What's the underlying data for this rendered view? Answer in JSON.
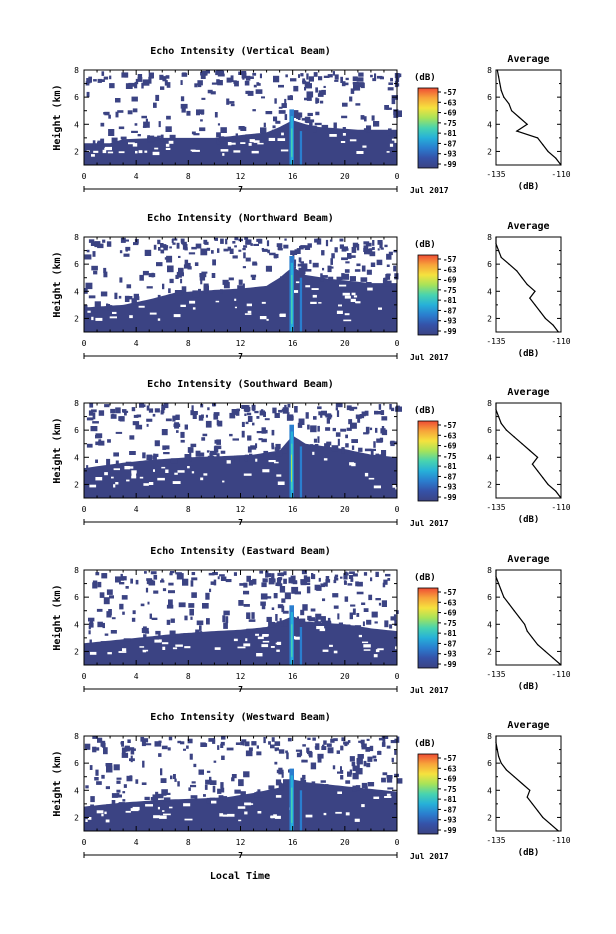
{
  "common": {
    "y_label": "Height (km)",
    "unit_label": "(dB)",
    "colorbar_ticks": [
      "-57",
      "-63",
      "-69",
      "-75",
      "-81",
      "-87",
      "-93",
      "-99"
    ],
    "time_ticks": [
      "0",
      "4",
      "8",
      "12",
      "16",
      "20",
      "0"
    ],
    "period_day": "7",
    "period_month_year": "Jul 2017",
    "x_label": "Local Time",
    "avg_title": "Average",
    "avg_x_ticks": [
      "-135",
      "-110"
    ],
    "avg_x_label": "(dB)"
  },
  "colors": {
    "background": "#3b4383",
    "colorbar": [
      "#3b4383",
      "#3552a8",
      "#2a7ecf",
      "#26b0d9",
      "#47d3b0",
      "#a6e35a",
      "#f5e23e",
      "#f7a53a",
      "#ef4c34"
    ]
  },
  "chart_data": [
    {
      "type": "heatmap",
      "title": "Echo Intensity (Vertical Beam)",
      "x_range": [
        0,
        24
      ],
      "y_range": [
        1,
        8
      ],
      "color_range_db": [
        -99,
        -57
      ],
      "average_profile": {
        "title": "Average",
        "x_range": [
          -135,
          -110
        ],
        "y_range": [
          1,
          8
        ],
        "height_km": [
          1.0,
          1.5,
          2.0,
          2.5,
          3.0,
          3.5,
          4.0,
          4.5,
          5.0,
          5.5,
          6.0,
          6.5,
          7.0,
          7.5,
          8.0
        ],
        "value_db": [
          -110,
          -112,
          -115,
          -117,
          -119,
          -127,
          -123,
          -126,
          -129,
          -130,
          -132,
          -133,
          -133.5,
          -134,
          -134.5
        ]
      }
    },
    {
      "type": "heatmap",
      "title": "Echo Intensity (Northward Beam)",
      "x_range": [
        0,
        24
      ],
      "y_range": [
        1,
        8
      ],
      "color_range_db": [
        -99,
        -57
      ],
      "average_profile": {
        "title": "Average",
        "x_range": [
          -135,
          -110
        ],
        "y_range": [
          1,
          8
        ],
        "height_km": [
          1.0,
          1.5,
          2.0,
          2.5,
          3.0,
          3.5,
          4.0,
          4.5,
          5.0,
          5.5,
          6.0,
          6.5,
          7.0,
          7.5,
          8.0
        ],
        "value_db": [
          -111,
          -113,
          -116,
          -118,
          -120,
          -122,
          -120,
          -123,
          -125,
          -127,
          -130,
          -133,
          -134,
          -135,
          -135
        ]
      }
    },
    {
      "type": "heatmap",
      "title": "Echo Intensity (Southward Beam)",
      "x_range": [
        0,
        24
      ],
      "y_range": [
        1,
        8
      ],
      "color_range_db": [
        -99,
        -57
      ],
      "average_profile": {
        "title": "Average",
        "x_range": [
          -135,
          -110
        ],
        "y_range": [
          1,
          8
        ],
        "height_km": [
          1.0,
          1.5,
          2.0,
          2.5,
          3.0,
          3.5,
          4.0,
          4.5,
          5.0,
          5.5,
          6.0,
          6.5,
          7.0,
          7.5,
          8.0
        ],
        "value_db": [
          -110,
          -112,
          -115,
          -117,
          -119,
          -121,
          -119,
          -122,
          -125,
          -128,
          -131,
          -133,
          -134,
          -135,
          -135
        ]
      }
    },
    {
      "type": "heatmap",
      "title": "Echo Intensity (Eastward Beam)",
      "x_range": [
        0,
        24
      ],
      "y_range": [
        1,
        8
      ],
      "color_range_db": [
        -99,
        -57
      ],
      "average_profile": {
        "title": "Average",
        "x_range": [
          -135,
          -110
        ],
        "y_range": [
          1,
          8
        ],
        "height_km": [
          1.0,
          1.5,
          2.0,
          2.5,
          3.0,
          3.5,
          4.0,
          4.5,
          5.0,
          5.5,
          6.0,
          6.5,
          7.0,
          7.5,
          8.0
        ],
        "value_db": [
          -110,
          -113,
          -116,
          -119,
          -121,
          -123,
          -124,
          -126,
          -128,
          -130,
          -132,
          -133,
          -134,
          -135,
          -135
        ]
      }
    },
    {
      "type": "heatmap",
      "title": "Echo Intensity (Westward Beam)",
      "x_range": [
        0,
        24
      ],
      "y_range": [
        1,
        8
      ],
      "color_range_db": [
        -99,
        -57
      ],
      "average_profile": {
        "title": "Average",
        "x_range": [
          -135,
          -110
        ],
        "y_range": [
          1,
          8
        ],
        "height_km": [
          1.0,
          1.5,
          2.0,
          2.5,
          3.0,
          3.5,
          4.0,
          4.5,
          5.0,
          5.5,
          6.0,
          6.5,
          7.0,
          7.5,
          8.0
        ],
        "value_db": [
          -111,
          -114,
          -117,
          -119,
          -121,
          -123,
          -122,
          -125,
          -128,
          -131,
          -133,
          -134,
          -134.5,
          -135,
          -135
        ]
      }
    }
  ]
}
